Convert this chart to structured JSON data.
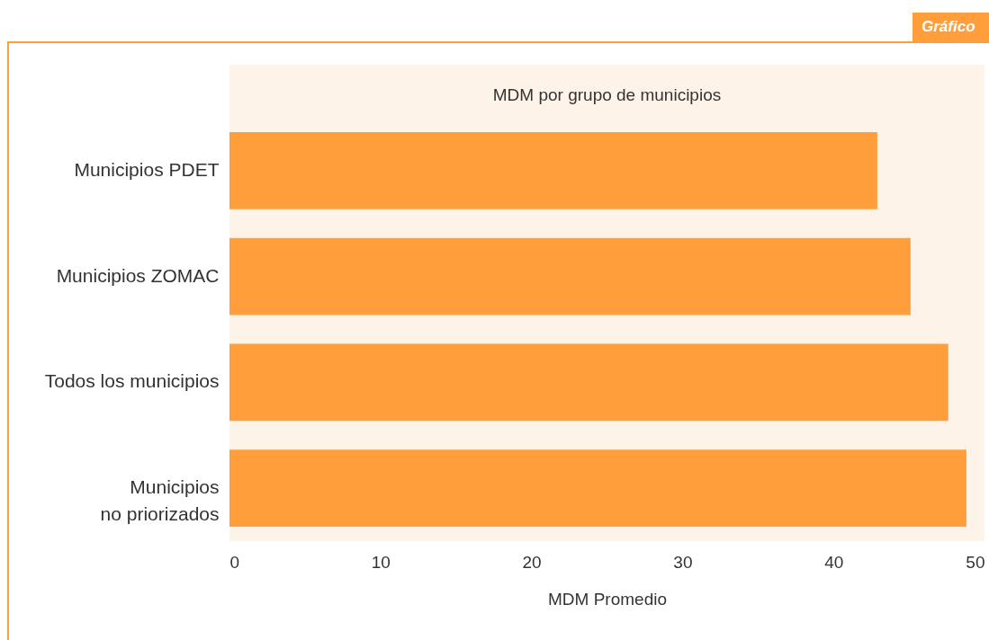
{
  "chart_data": {
    "type": "bar",
    "orientation": "horizontal",
    "title": "MDM por grupo de municipios",
    "xlabel": "MDM Promedio",
    "categories": [
      "Municipios PDET",
      "Municipios ZOMAC",
      "Todos los municipios",
      "Municipios\nno priorizados"
    ],
    "values": [
      42.9,
      45.1,
      47.6,
      48.8
    ],
    "color": "#ff9e3a",
    "xlim": [
      0,
      50
    ],
    "xticks": [
      0,
      10,
      20,
      30,
      40,
      50
    ],
    "grid": false,
    "annotations": [
      "Gráfico"
    ]
  }
}
